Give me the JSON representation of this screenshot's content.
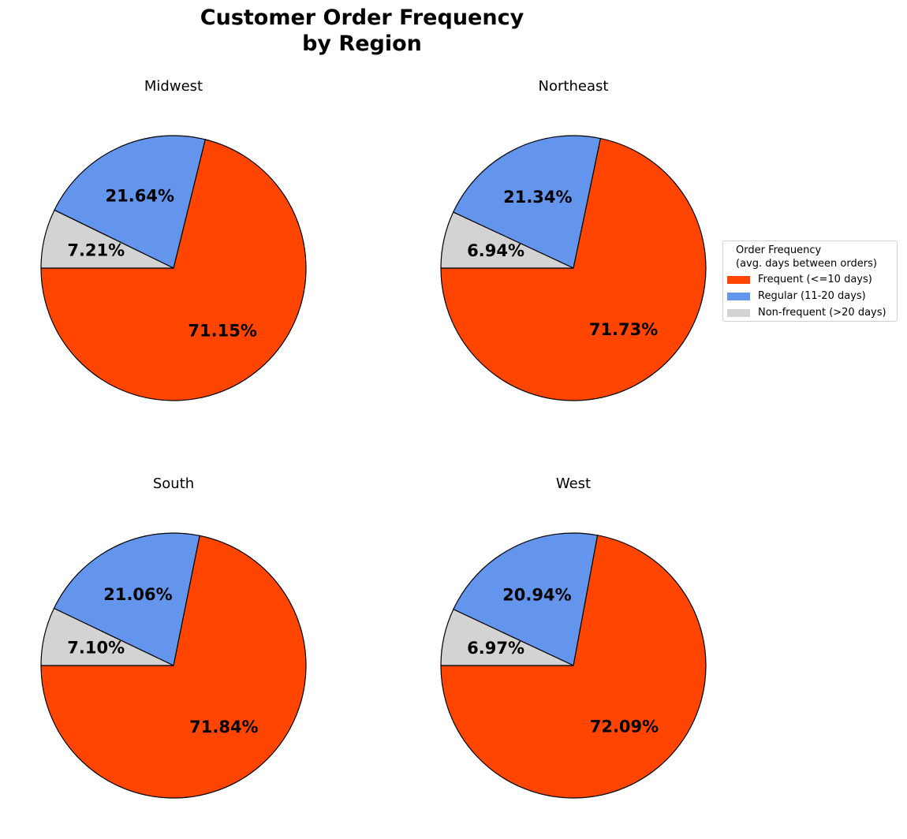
{
  "chart_data": {
    "type": "pie",
    "title_lines": [
      "Customer Order Frequency",
      "by Region"
    ],
    "legend": {
      "title_lines": [
        "Order Frequency",
        "(avg. days between orders)"
      ],
      "placement": "right",
      "entries": [
        {
          "label": "Frequent (<=10 days)",
          "color": "#FF4500"
        },
        {
          "label": "Regular (11-20 days)",
          "color": "#6495ED"
        },
        {
          "label": "Non-frequent (>20 days)",
          "color": "#D3D3D3"
        }
      ]
    },
    "categories": [
      "Frequent (<=10 days)",
      "Regular (11-20 days)",
      "Non-frequent (>20 days)"
    ],
    "charts": [
      {
        "title": "Midwest",
        "values": [
          71.15,
          21.64,
          7.21
        ],
        "labels": [
          "71.15%",
          "21.64%",
          "7.21%"
        ]
      },
      {
        "title": "Northeast",
        "values": [
          71.73,
          21.34,
          6.94
        ],
        "labels": [
          "71.73%",
          "21.34%",
          "6.94%"
        ]
      },
      {
        "title": "South",
        "values": [
          71.84,
          21.06,
          7.1
        ],
        "labels": [
          "71.84%",
          "21.06%",
          "7.10%"
        ]
      },
      {
        "title": "West",
        "values": [
          72.09,
          20.94,
          6.97
        ],
        "labels": [
          "72.09%",
          "20.94%",
          "6.97%"
        ]
      }
    ]
  }
}
